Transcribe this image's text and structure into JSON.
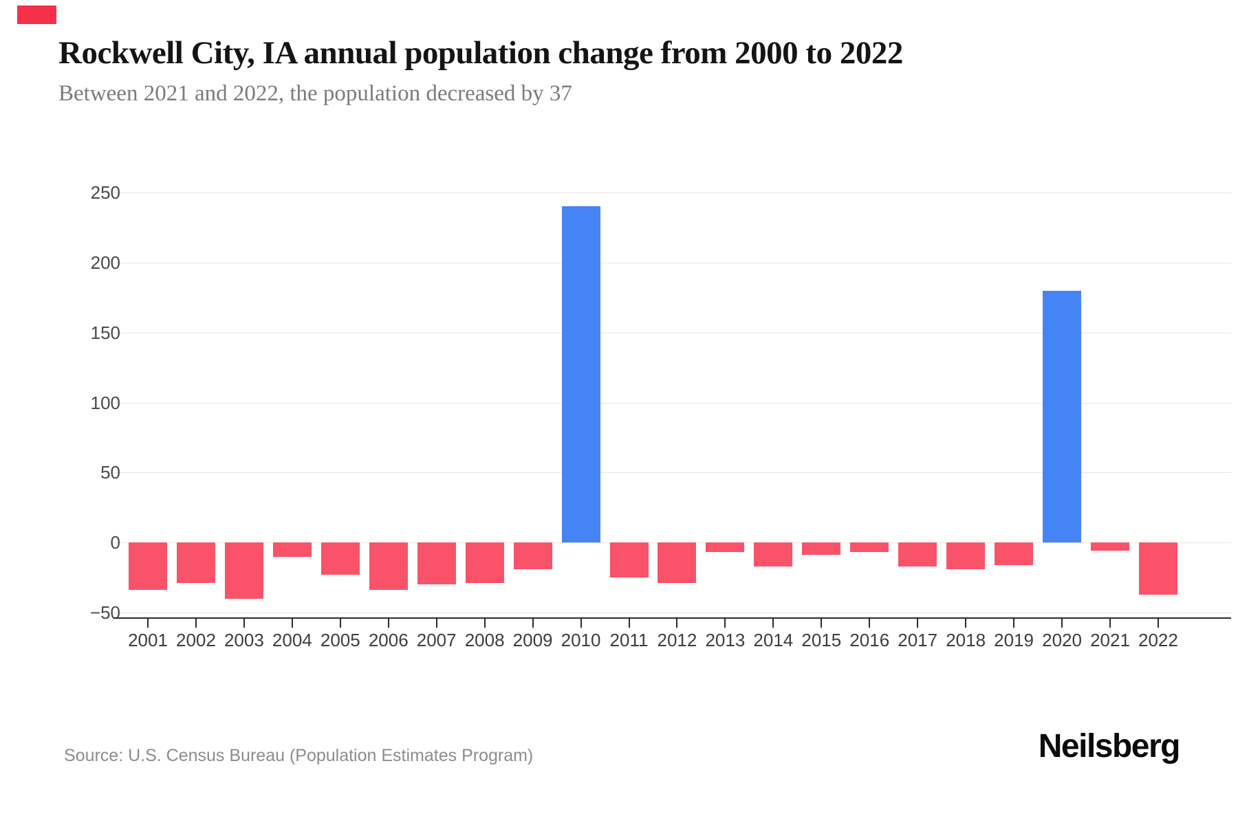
{
  "page": {
    "accent_color": "#f6304a"
  },
  "header": {
    "title": "Rockwell City, IA annual population change from 2000 to 2022",
    "subtitle": "Between 2021 and 2022, the population decreased by 37"
  },
  "footer": {
    "source": "Source: U.S. Census Bureau (Population Estimates Program)",
    "brand": "Neilsberg"
  },
  "chart_data": {
    "type": "bar",
    "title": "Rockwell City, IA annual population change from 2000 to 2022",
    "categories": [
      "2001",
      "2002",
      "2003",
      "2004",
      "2005",
      "2006",
      "2007",
      "2008",
      "2009",
      "2010",
      "2011",
      "2012",
      "2013",
      "2014",
      "2015",
      "2016",
      "2017",
      "2018",
      "2019",
      "2020",
      "2021",
      "2022"
    ],
    "values": [
      -34,
      -29,
      -40,
      -10,
      -23,
      -34,
      -30,
      -29,
      -19,
      240,
      -25,
      -29,
      -7,
      -17,
      -9,
      -7,
      -17,
      -19,
      -16,
      180,
      -6,
      -37
    ],
    "xlabel": "",
    "ylabel": "",
    "ylim": [
      -50,
      250
    ],
    "yticks": [
      250,
      200,
      150,
      100,
      50,
      0,
      -50
    ],
    "grid": true,
    "legend": false,
    "colors": {
      "positive": "#4584f4",
      "negative": "#fa5269"
    }
  }
}
